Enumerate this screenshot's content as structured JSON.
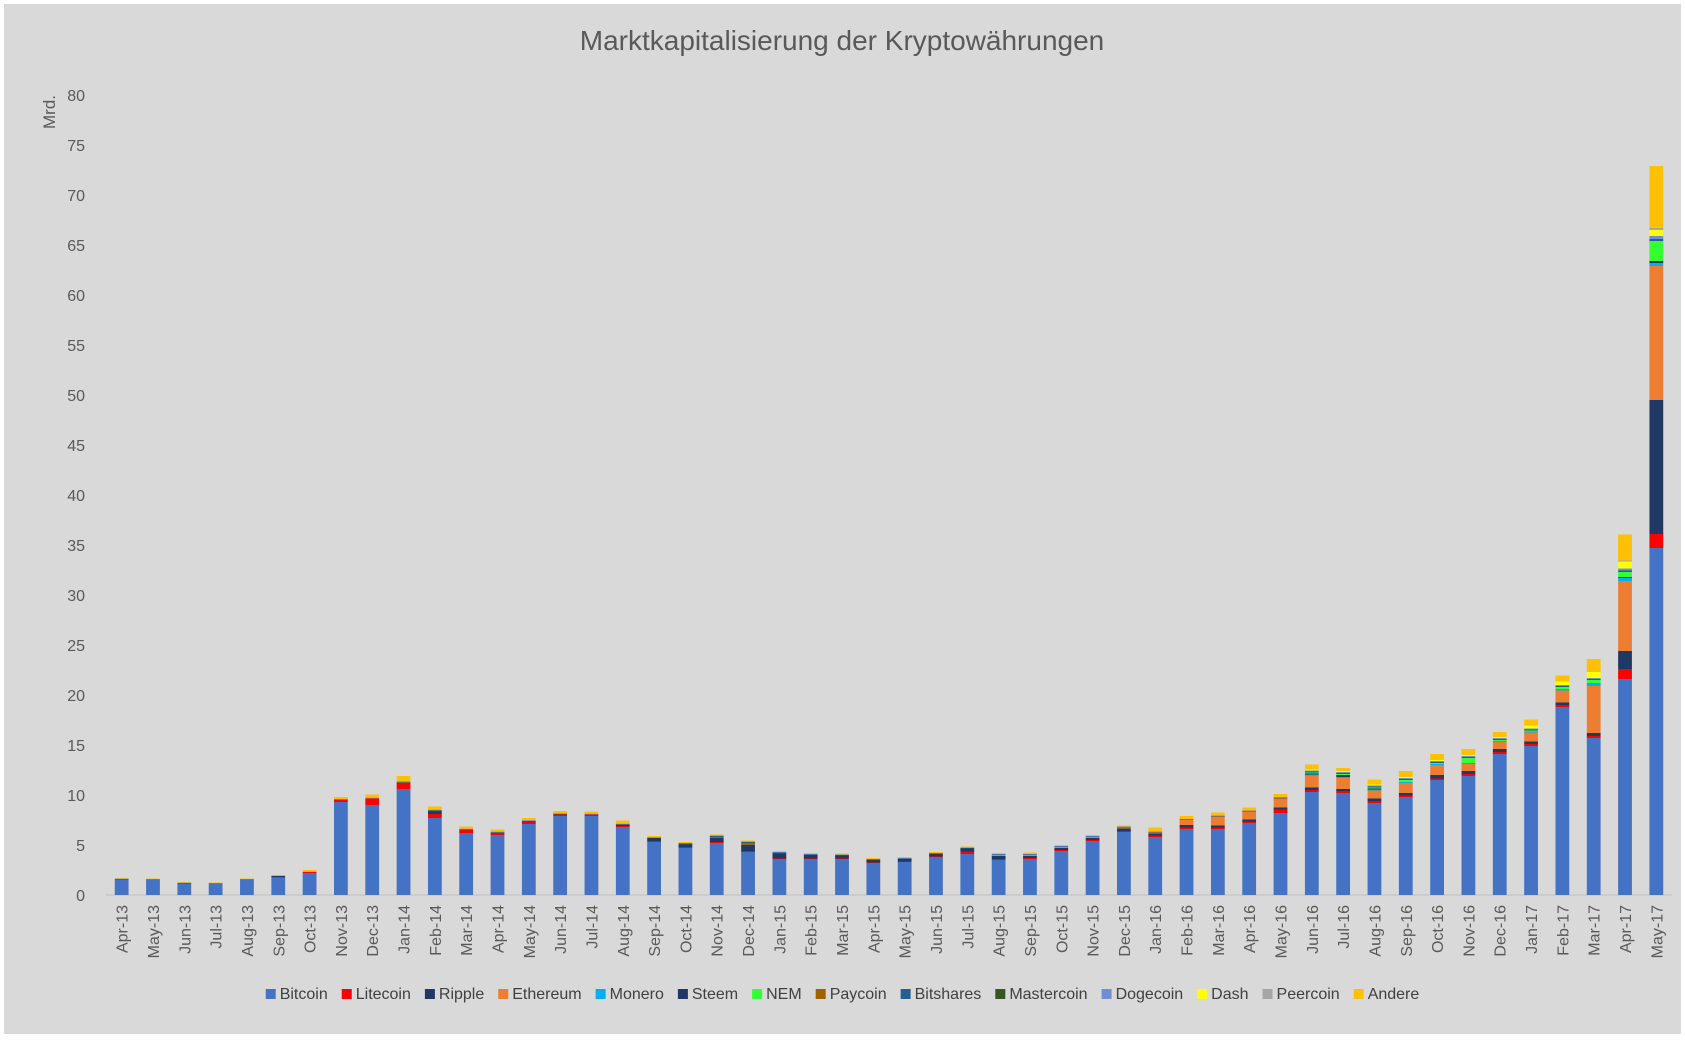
{
  "chart_data": {
    "type": "bar",
    "stacked": true,
    "title": "Marktkapitalisierung der Kryptowährungen",
    "ylabel": "Mrd.",
    "xlabel": "",
    "ylim": [
      0,
      80
    ],
    "yticks": [
      0,
      5,
      10,
      15,
      20,
      25,
      30,
      35,
      40,
      45,
      50,
      55,
      60,
      65,
      70,
      75,
      80
    ],
    "grid": false,
    "legend_position": "bottom",
    "categories": [
      "Apr-13",
      "May-13",
      "Jun-13",
      "Jul-13",
      "Aug-13",
      "Sep-13",
      "Oct-13",
      "Nov-13",
      "Dec-13",
      "Jan-14",
      "Feb-14",
      "Mar-14",
      "Apr-14",
      "May-14",
      "Jun-14",
      "Jul-14",
      "Aug-14",
      "Sep-14",
      "Oct-14",
      "Nov-14",
      "Dec-14",
      "Jan-15",
      "Feb-15",
      "Mar-15",
      "Apr-15",
      "May-15",
      "Jun-15",
      "Jul-15",
      "Aug-15",
      "Sep-15",
      "Oct-15",
      "Nov-15",
      "Dec-15",
      "Jan-16",
      "Feb-16",
      "Mar-16",
      "Apr-16",
      "May-16",
      "Jun-16",
      "Jul-16",
      "Aug-16",
      "Sep-16",
      "Oct-16",
      "Nov-16",
      "Dec-16",
      "Jan-17",
      "Feb-17",
      "Mar-17",
      "Apr-17",
      "May-17"
    ],
    "series": [
      {
        "name": "Bitcoin",
        "color": "#4472c4",
        "values": [
          1.55,
          1.5,
          1.15,
          1.1,
          1.5,
          1.75,
          2.2,
          9.3,
          9.0,
          10.6,
          7.7,
          6.2,
          6.0,
          7.1,
          7.9,
          7.9,
          6.8,
          5.3,
          4.7,
          5.2,
          4.3,
          3.6,
          3.6,
          3.6,
          3.2,
          3.3,
          3.8,
          4.1,
          3.5,
          3.6,
          4.4,
          5.4,
          6.3,
          5.8,
          6.6,
          6.6,
          7.2,
          8.2,
          10.3,
          10.2,
          9.2,
          9.8,
          11.5,
          11.9,
          14.1,
          14.9,
          18.8,
          15.7,
          21.6,
          34.7
        ]
      },
      {
        "name": "Litecoin",
        "color": "#ff0000",
        "values": [
          0.05,
          0.05,
          0.05,
          0.05,
          0.05,
          0.05,
          0.1,
          0.25,
          0.65,
          0.55,
          0.4,
          0.3,
          0.2,
          0.25,
          0.15,
          0.15,
          0.1,
          0.1,
          0.1,
          0.1,
          0.1,
          0.05,
          0.05,
          0.05,
          0.05,
          0.05,
          0.05,
          0.25,
          0.1,
          0.1,
          0.1,
          0.1,
          0.1,
          0.15,
          0.15,
          0.15,
          0.15,
          0.35,
          0.2,
          0.2,
          0.2,
          0.15,
          0.15,
          0.2,
          0.2,
          0.2,
          0.2,
          0.2,
          1.0,
          1.4
        ]
      },
      {
        "name": "Ripple",
        "color": "#203864",
        "values": [
          0,
          0,
          0,
          0,
          0,
          0.1,
          0,
          0,
          0,
          0,
          0.25,
          0,
          0,
          0,
          0,
          0,
          0.15,
          0.3,
          0.25,
          0.4,
          0.6,
          0.5,
          0.35,
          0.3,
          0.25,
          0.25,
          0.25,
          0.3,
          0.3,
          0.2,
          0.2,
          0.2,
          0.25,
          0.2,
          0.25,
          0.2,
          0.2,
          0.2,
          0.25,
          0.2,
          0.25,
          0.25,
          0.35,
          0.3,
          0.3,
          0.25,
          0.25,
          0.3,
          1.8,
          13.4
        ]
      },
      {
        "name": "Ethereum",
        "color": "#ed7d31",
        "values": [
          0,
          0,
          0,
          0,
          0,
          0,
          0,
          0,
          0,
          0,
          0,
          0,
          0,
          0,
          0,
          0,
          0,
          0,
          0,
          0,
          0,
          0,
          0,
          0,
          0,
          0,
          0,
          0,
          0.1,
          0.1,
          0.1,
          0.1,
          0.1,
          0.1,
          0.5,
          0.9,
          0.8,
          0.9,
          1.2,
          1.1,
          0.8,
          1.0,
          1.0,
          0.7,
          0.7,
          0.9,
          1.2,
          4.7,
          7.0,
          13.4
        ]
      },
      {
        "name": "Monero",
        "color": "#00b0f0",
        "values": [
          0,
          0,
          0,
          0,
          0,
          0,
          0,
          0,
          0,
          0,
          0,
          0,
          0,
          0,
          0,
          0,
          0,
          0,
          0,
          0,
          0,
          0,
          0,
          0,
          0,
          0,
          0,
          0,
          0,
          0,
          0,
          0,
          0,
          0,
          0,
          0,
          0,
          0,
          0.1,
          0.1,
          0.1,
          0.1,
          0.1,
          0.1,
          0.1,
          0.1,
          0.15,
          0.3,
          0.3,
          0.3
        ]
      },
      {
        "name": "Steem",
        "color": "#1f3864",
        "values": [
          0,
          0,
          0,
          0,
          0,
          0,
          0,
          0,
          0,
          0,
          0,
          0,
          0,
          0,
          0,
          0,
          0,
          0,
          0,
          0,
          0,
          0,
          0,
          0,
          0,
          0,
          0,
          0,
          0,
          0,
          0,
          0,
          0,
          0,
          0,
          0,
          0,
          0,
          0.1,
          0.2,
          0.1,
          0,
          0,
          0,
          0,
          0,
          0,
          0,
          0.1,
          0.2
        ]
      },
      {
        "name": "NEM",
        "color": "#33ff33",
        "values": [
          0,
          0,
          0,
          0,
          0,
          0,
          0,
          0,
          0,
          0,
          0,
          0,
          0,
          0,
          0,
          0,
          0,
          0,
          0,
          0,
          0,
          0,
          0,
          0,
          0,
          0,
          0,
          0,
          0,
          0,
          0,
          0,
          0,
          0,
          0,
          0,
          0,
          0,
          0.1,
          0.1,
          0.1,
          0.2,
          0.1,
          0.5,
          0.1,
          0.1,
          0.2,
          0.3,
          0.5,
          2.0
        ]
      },
      {
        "name": "Paycoin",
        "color": "#9c6500",
        "values": [
          0,
          0,
          0,
          0,
          0,
          0,
          0,
          0,
          0,
          0,
          0,
          0,
          0,
          0,
          0,
          0,
          0,
          0,
          0,
          0.1,
          0.2,
          0,
          0,
          0,
          0,
          0,
          0,
          0,
          0,
          0,
          0,
          0,
          0,
          0,
          0,
          0,
          0,
          0,
          0,
          0,
          0,
          0,
          0,
          0,
          0,
          0,
          0,
          0,
          0,
          0
        ]
      },
      {
        "name": "Bitshares",
        "color": "#255e91",
        "values": [
          0,
          0,
          0,
          0,
          0,
          0,
          0,
          0,
          0,
          0,
          0,
          0,
          0,
          0,
          0,
          0,
          0,
          0,
          0.1,
          0.1,
          0.1,
          0.1,
          0.05,
          0.05,
          0.05,
          0.05,
          0.05,
          0.05,
          0.05,
          0.05,
          0.05,
          0.05,
          0.05,
          0.05,
          0.05,
          0.05,
          0.05,
          0.05,
          0.1,
          0.1,
          0.1,
          0.1,
          0.1,
          0.1,
          0.1,
          0.1,
          0.1,
          0.1,
          0.15,
          0.2
        ]
      },
      {
        "name": "Mastercoin",
        "color": "#375623",
        "values": [
          0,
          0,
          0,
          0,
          0,
          0,
          0,
          0,
          0,
          0.1,
          0.1,
          0.05,
          0.05,
          0.05,
          0.05,
          0,
          0,
          0,
          0,
          0,
          0,
          0,
          0,
          0,
          0,
          0,
          0,
          0,
          0,
          0,
          0,
          0,
          0,
          0,
          0,
          0,
          0,
          0,
          0,
          0,
          0,
          0,
          0,
          0,
          0,
          0,
          0,
          0,
          0,
          0
        ]
      },
      {
        "name": "Dogecoin",
        "color": "#6f8fd0",
        "values": [
          0,
          0,
          0,
          0,
          0,
          0,
          0,
          0,
          0.05,
          0.1,
          0.05,
          0.05,
          0.05,
          0.05,
          0.05,
          0.05,
          0.05,
          0.05,
          0.05,
          0.05,
          0.05,
          0.05,
          0.05,
          0.05,
          0.05,
          0.05,
          0.05,
          0.05,
          0.05,
          0.05,
          0.05,
          0.05,
          0.05,
          0.05,
          0.05,
          0.05,
          0.05,
          0.1,
          0.1,
          0.1,
          0.1,
          0.1,
          0.1,
          0.1,
          0.1,
          0.1,
          0.1,
          0.1,
          0.2,
          0.3
        ]
      },
      {
        "name": "Dash",
        "color": "#ffff00",
        "values": [
          0,
          0,
          0,
          0,
          0,
          0,
          0,
          0,
          0,
          0,
          0,
          0,
          0,
          0,
          0,
          0,
          0,
          0,
          0,
          0,
          0,
          0,
          0,
          0,
          0,
          0,
          0,
          0,
          0,
          0,
          0,
          0,
          0,
          0,
          0,
          0,
          0,
          0,
          0.1,
          0.1,
          0.1,
          0.1,
          0.1,
          0.1,
          0.1,
          0.3,
          0.35,
          0.6,
          0.7,
          0.6
        ]
      },
      {
        "name": "Peercoin",
        "color": "#a5a5a5",
        "values": [
          0.05,
          0.05,
          0.05,
          0.05,
          0.05,
          0.05,
          0.05,
          0.05,
          0.05,
          0.05,
          0.05,
          0.05,
          0.05,
          0.05,
          0.05,
          0.05,
          0.05,
          0.05,
          0,
          0,
          0,
          0,
          0,
          0,
          0,
          0,
          0,
          0,
          0,
          0,
          0,
          0,
          0,
          0,
          0,
          0,
          0,
          0,
          0,
          0,
          0,
          0,
          0,
          0,
          0,
          0,
          0,
          0,
          0.1,
          0.2
        ]
      },
      {
        "name": "Andere",
        "color": "#ffc000",
        "values": [
          0.05,
          0.05,
          0.05,
          0.05,
          0.05,
          0.05,
          0.15,
          0.2,
          0.3,
          0.5,
          0.3,
          0.2,
          0.2,
          0.2,
          0.2,
          0.2,
          0.3,
          0.1,
          0.1,
          0.1,
          0.1,
          0.1,
          0.1,
          0.1,
          0.1,
          0.1,
          0.1,
          0.1,
          0.1,
          0.15,
          0.1,
          0.1,
          0.1,
          0.4,
          0.3,
          0.3,
          0.3,
          0.3,
          0.5,
          0.3,
          0.5,
          0.6,
          0.6,
          0.6,
          0.5,
          0.6,
          0.6,
          1.3,
          2.6,
          6.2
        ]
      }
    ]
  }
}
